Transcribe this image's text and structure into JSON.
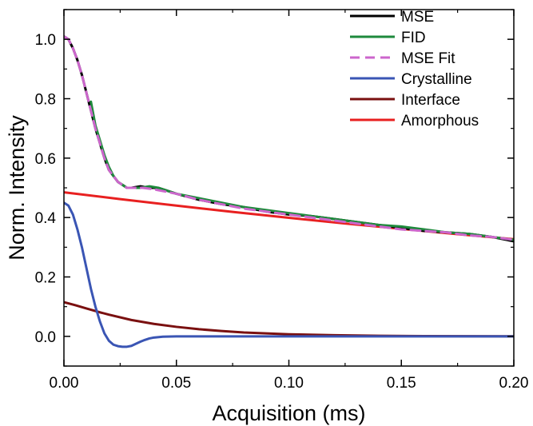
{
  "chart_data": {
    "type": "line",
    "title": "",
    "xlabel": "Acquisition (ms)",
    "ylabel": "Norm. Intensity",
    "xlim": [
      0,
      0.2
    ],
    "ylim": [
      -0.1,
      1.1
    ],
    "x_ticks": [
      0.0,
      0.05,
      0.1,
      0.15,
      0.2
    ],
    "x_tick_labels": [
      "0.00",
      "0.05",
      "0.10",
      "0.15",
      "0.20"
    ],
    "y_ticks": [
      0.0,
      0.2,
      0.4,
      0.6,
      0.8,
      1.0
    ],
    "y_tick_labels": [
      "0.0",
      "0.2",
      "0.4",
      "0.6",
      "0.8",
      "1.0"
    ],
    "grid": false,
    "legend_position": "top-right",
    "series": [
      {
        "name": "MSE",
        "color": "#000000",
        "dash": "solid",
        "x": [
          0.0,
          0.002,
          0.004,
          0.006,
          0.008,
          0.01,
          0.012,
          0.014,
          0.016,
          0.018,
          0.02,
          0.022,
          0.024,
          0.026,
          0.028,
          0.03,
          0.034,
          0.038,
          0.042,
          0.046,
          0.05,
          0.06,
          0.07,
          0.08,
          0.09,
          0.1,
          0.11,
          0.12,
          0.13,
          0.14,
          0.15,
          0.16,
          0.17,
          0.18,
          0.19,
          0.2
        ],
        "y": [
          1.01,
          1.0,
          0.97,
          0.93,
          0.88,
          0.82,
          0.76,
          0.7,
          0.65,
          0.6,
          0.56,
          0.54,
          0.52,
          0.51,
          0.5,
          0.5,
          0.505,
          0.5,
          0.5,
          0.49,
          0.48,
          0.46,
          0.445,
          0.435,
          0.42,
          0.41,
          0.405,
          0.395,
          0.385,
          0.375,
          0.365,
          0.355,
          0.35,
          0.345,
          0.335,
          0.32
        ]
      },
      {
        "name": "FID",
        "color": "#1e8a3c",
        "dash": "solid",
        "x": [
          0.012,
          0.014,
          0.016,
          0.018,
          0.02,
          0.022,
          0.024,
          0.026,
          0.028,
          0.03,
          0.034,
          0.038,
          0.042,
          0.046,
          0.05,
          0.06,
          0.07,
          0.08,
          0.09,
          0.1,
          0.11,
          0.12,
          0.13,
          0.14,
          0.15,
          0.16,
          0.17,
          0.18,
          0.19,
          0.2
        ],
        "y": [
          0.79,
          0.71,
          0.66,
          0.61,
          0.57,
          0.54,
          0.52,
          0.51,
          0.5,
          0.5,
          0.5,
          0.505,
          0.5,
          0.49,
          0.48,
          0.465,
          0.45,
          0.435,
          0.425,
          0.415,
          0.405,
          0.395,
          0.385,
          0.375,
          0.37,
          0.36,
          0.35,
          0.345,
          0.335,
          0.325
        ]
      },
      {
        "name": "MSE Fit",
        "color": "#cc66cc",
        "dash": "dashed",
        "x": [
          0.0,
          0.002,
          0.004,
          0.006,
          0.008,
          0.01,
          0.012,
          0.014,
          0.016,
          0.018,
          0.02,
          0.022,
          0.024,
          0.026,
          0.028,
          0.03,
          0.035,
          0.04,
          0.05,
          0.06,
          0.07,
          0.08,
          0.09,
          0.1,
          0.11,
          0.12,
          0.13,
          0.14,
          0.15,
          0.16,
          0.17,
          0.18,
          0.19,
          0.2
        ],
        "y": [
          1.01,
          1.0,
          0.97,
          0.93,
          0.88,
          0.82,
          0.76,
          0.7,
          0.65,
          0.6,
          0.56,
          0.54,
          0.52,
          0.51,
          0.5,
          0.5,
          0.5,
          0.495,
          0.48,
          0.46,
          0.445,
          0.43,
          0.42,
          0.41,
          0.4,
          0.39,
          0.38,
          0.37,
          0.36,
          0.355,
          0.35,
          0.34,
          0.335,
          0.325
        ]
      },
      {
        "name": "Crystalline",
        "color": "#3a55b4",
        "dash": "solid",
        "x": [
          0.0,
          0.002,
          0.004,
          0.006,
          0.008,
          0.01,
          0.012,
          0.014,
          0.016,
          0.018,
          0.02,
          0.022,
          0.024,
          0.026,
          0.028,
          0.03,
          0.032,
          0.034,
          0.036,
          0.038,
          0.04,
          0.044,
          0.05,
          0.06,
          0.08,
          0.1,
          0.15,
          0.2
        ],
        "y": [
          0.45,
          0.44,
          0.41,
          0.36,
          0.3,
          0.23,
          0.16,
          0.1,
          0.05,
          0.01,
          -0.015,
          -0.028,
          -0.033,
          -0.035,
          -0.035,
          -0.032,
          -0.025,
          -0.018,
          -0.012,
          -0.007,
          -0.004,
          -0.001,
          0.0,
          0.0,
          0.0,
          0.0,
          0.0,
          0.0
        ]
      },
      {
        "name": "Interface",
        "color": "#7a1010",
        "dash": "solid",
        "x": [
          0.0,
          0.005,
          0.01,
          0.015,
          0.02,
          0.03,
          0.04,
          0.05,
          0.06,
          0.07,
          0.08,
          0.09,
          0.1,
          0.12,
          0.14,
          0.16,
          0.18,
          0.2
        ],
        "y": [
          0.115,
          0.105,
          0.094,
          0.083,
          0.073,
          0.055,
          0.042,
          0.032,
          0.024,
          0.018,
          0.013,
          0.01,
          0.007,
          0.004,
          0.002,
          0.001,
          0.0005,
          0.0003
        ]
      },
      {
        "name": "Amorphous",
        "color": "#e82020",
        "dash": "solid",
        "x": [
          0.0,
          0.025,
          0.05,
          0.075,
          0.1,
          0.125,
          0.15,
          0.175,
          0.2
        ],
        "y": [
          0.485,
          0.462,
          0.44,
          0.419,
          0.399,
          0.38,
          0.362,
          0.344,
          0.327
        ]
      }
    ]
  }
}
